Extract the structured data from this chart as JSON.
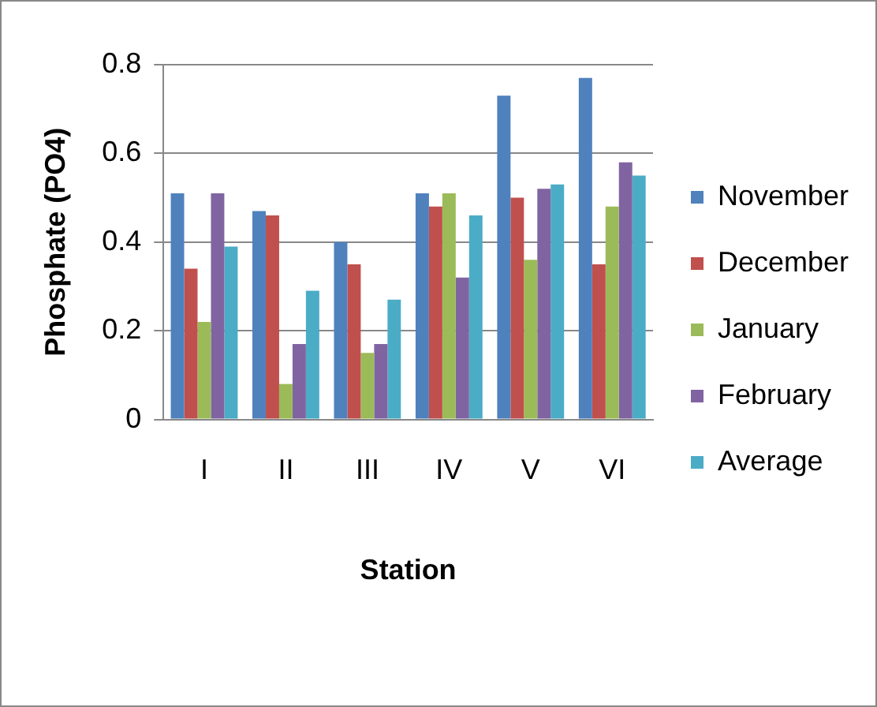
{
  "chart_data": {
    "type": "bar",
    "xlabel": "Station",
    "ylabel": "Phosphate (PO4)",
    "categories": [
      "I",
      "II",
      "III",
      "IV",
      "V",
      "VI"
    ],
    "series": [
      {
        "name": "November",
        "color": "#4f81bd",
        "values": [
          0.51,
          0.47,
          0.4,
          0.51,
          0.73,
          0.77
        ]
      },
      {
        "name": "December",
        "color": "#c0504d",
        "values": [
          0.34,
          0.46,
          0.35,
          0.48,
          0.5,
          0.35
        ]
      },
      {
        "name": "January",
        "color": "#9bbb59",
        "values": [
          0.22,
          0.08,
          0.15,
          0.51,
          0.36,
          0.48
        ]
      },
      {
        "name": "February",
        "color": "#8064a2",
        "values": [
          0.51,
          0.17,
          0.17,
          0.32,
          0.52,
          0.58
        ]
      },
      {
        "name": "Average",
        "color": "#4bacc6",
        "values": [
          0.39,
          0.29,
          0.27,
          0.46,
          0.53,
          0.55
        ]
      }
    ],
    "ylim": [
      0,
      0.8
    ],
    "yticks": [
      0,
      0.2,
      0.4,
      0.6,
      0.8
    ],
    "grid": "y",
    "legend": "right"
  }
}
